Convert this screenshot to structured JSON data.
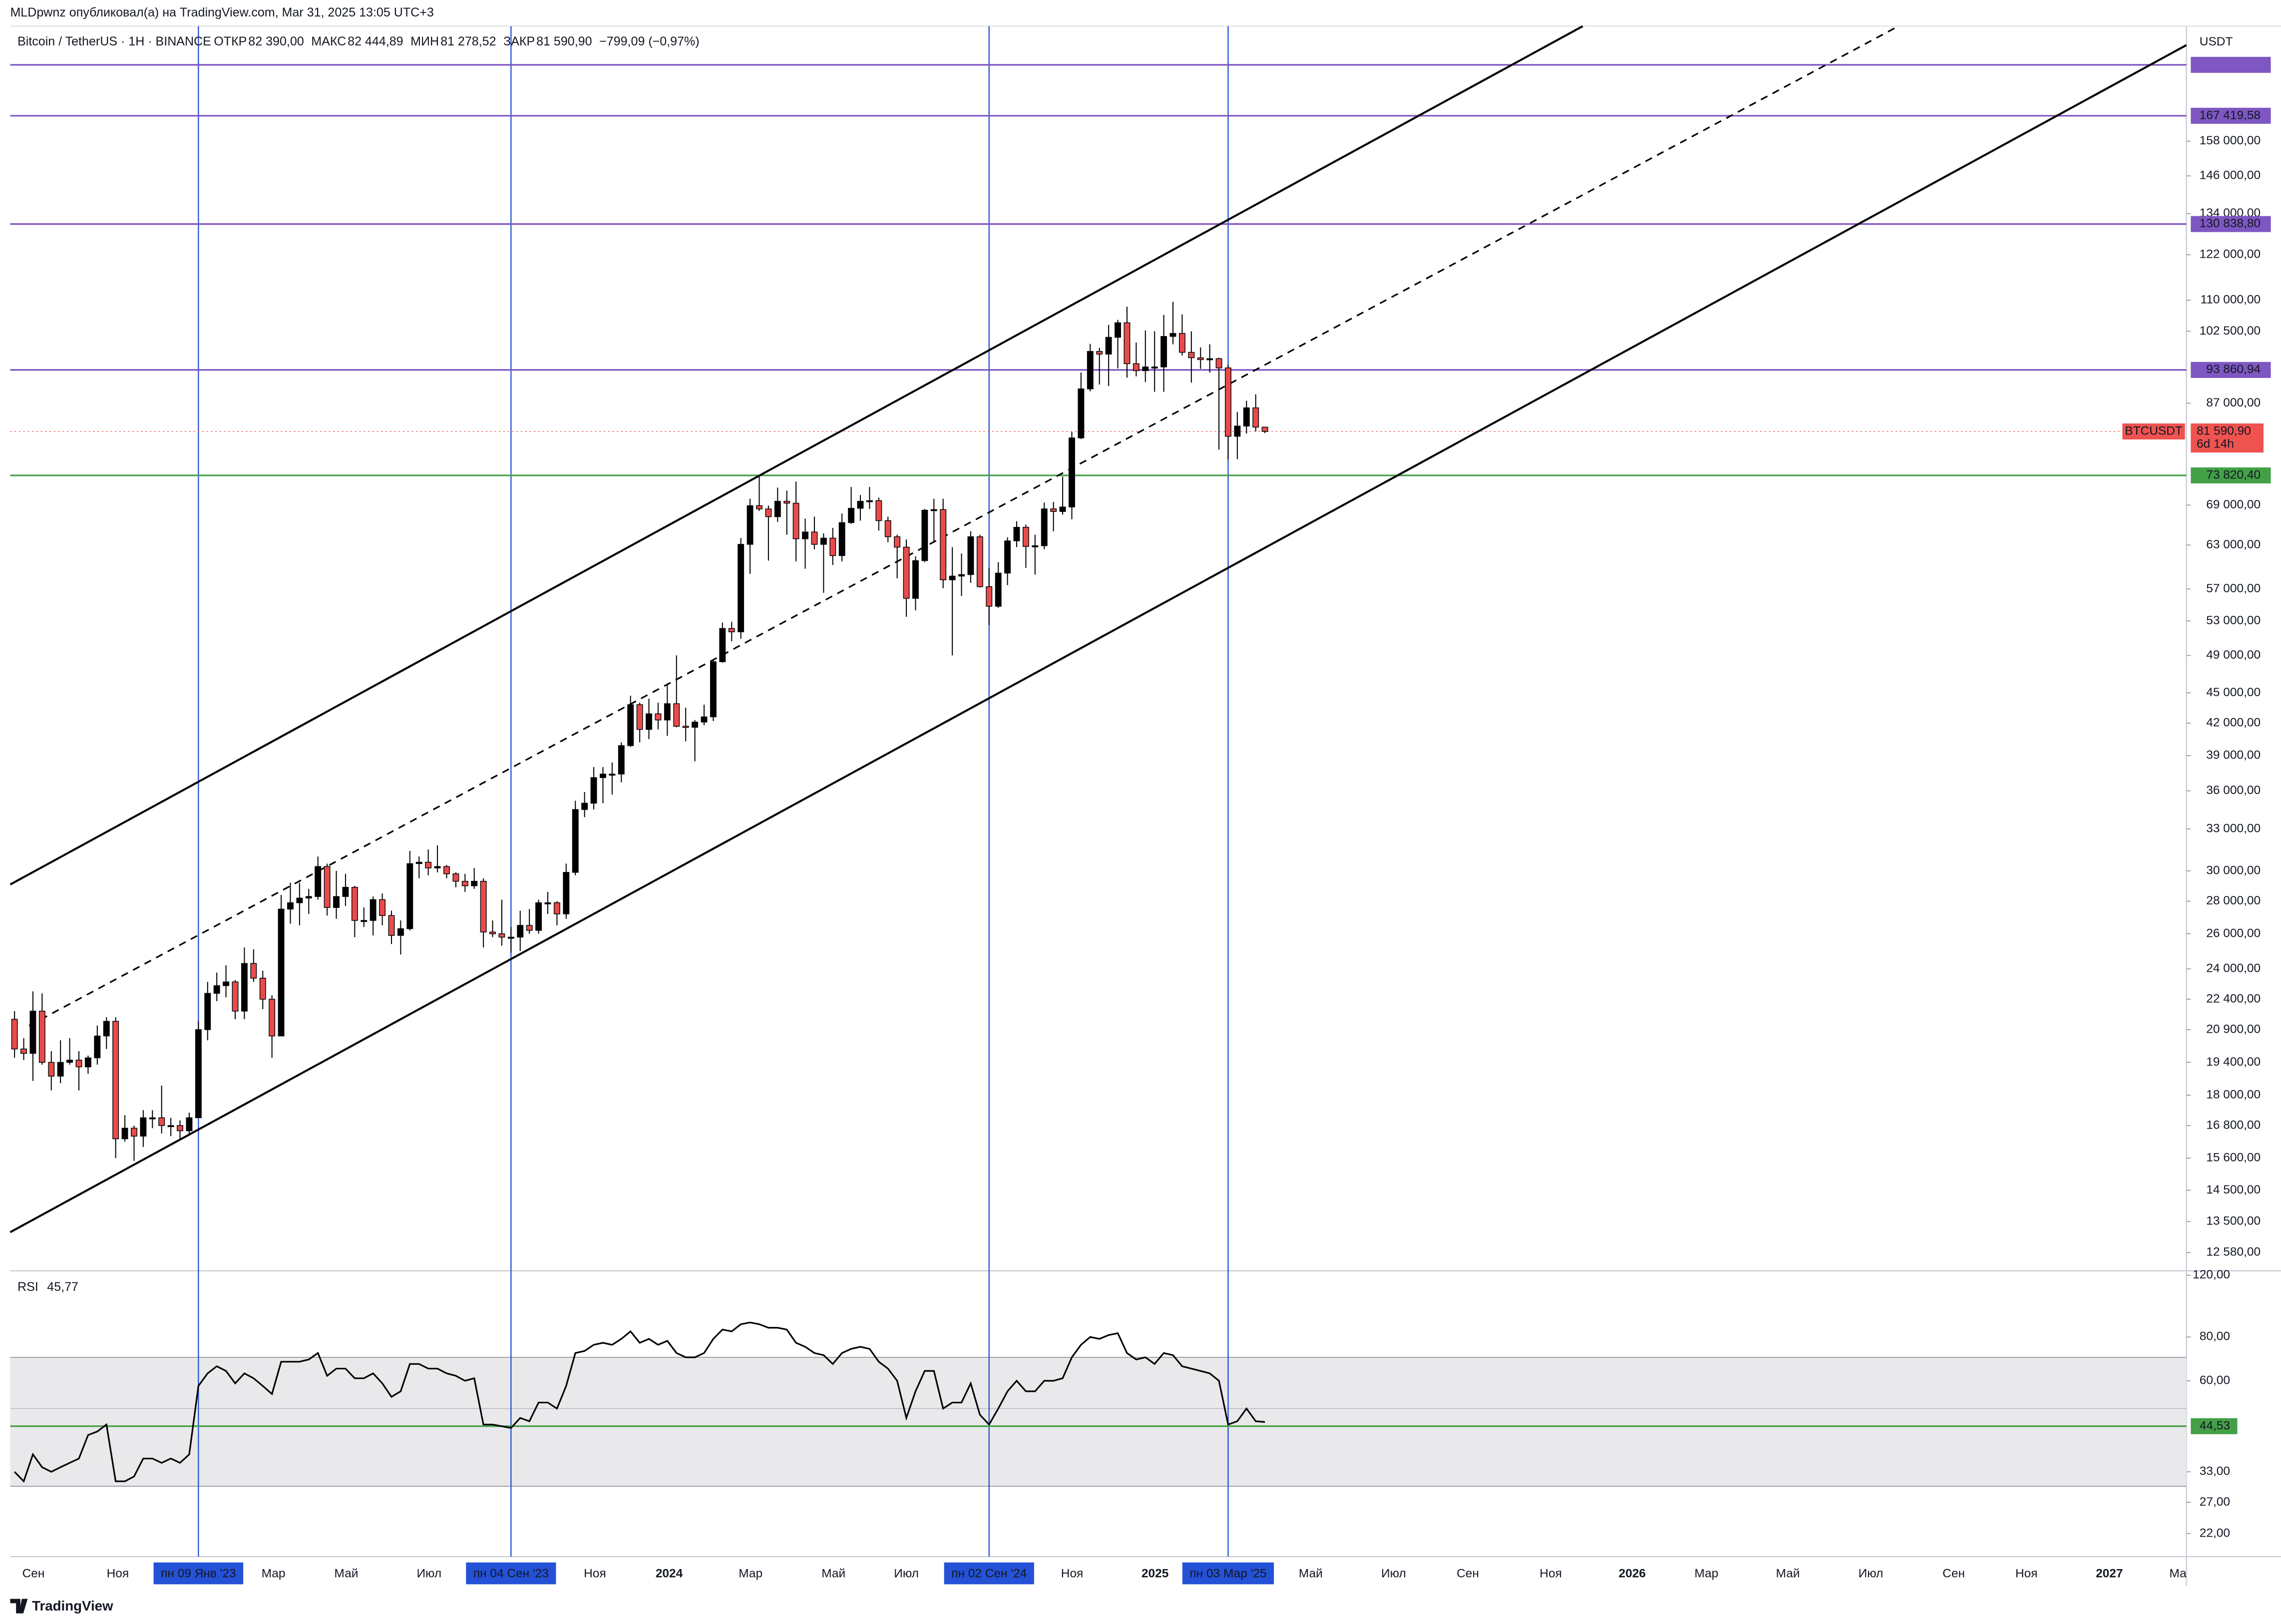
{
  "header": "MLDpwnz опубликовал(а) на TradingView.com, Mar 31, 2025 13:05 UTC+3",
  "currency": "USDT",
  "brand": "TradingView",
  "chart_data": {
    "type": "candlestick",
    "title": "Bitcoin / TetherUS · 1H · BINANCE",
    "ohlc_legend": [
      {
        "label": "ОТКР",
        "value": "82 390,00"
      },
      {
        "label": "МАКС",
        "value": "82 444,89"
      },
      {
        "label": "МИН",
        "value": "81 278,52"
      },
      {
        "label": "ЗАКР",
        "value": "81 590,90"
      }
    ],
    "change": "−799,09 (−0,97%)",
    "log": true,
    "up_color": "#000000",
    "down_color": "#e84b4b",
    "wick_color": "#000000",
    "open": [
      21400,
      20000,
      19800,
      21800,
      19400,
      18800,
      19400,
      19500,
      19200,
      19600,
      20600,
      21300,
      16300,
      16700,
      16400,
      17100,
      17100,
      16800,
      16800,
      16600,
      17100,
      20900,
      22700,
      23100,
      23300,
      21800,
      24300,
      23500,
      22400,
      20600,
      27500,
      27900,
      28200,
      28300,
      30300,
      27600,
      28300,
      28900,
      26800,
      26800,
      28100,
      27100,
      25900,
      26300,
      30500,
      30600,
      30200,
      30300,
      29800,
      29300,
      29000,
      29300,
      26100,
      26000,
      25800,
      25800,
      26500,
      26200,
      27900,
      27900,
      27200,
      29900,
      34500,
      35000,
      37100,
      37400,
      37400,
      39900,
      43800,
      41400,
      42900,
      42300,
      43900,
      41700,
      41600,
      42100,
      42600,
      48300,
      52100,
      51700,
      63100,
      68900,
      68400,
      67200,
      69600,
      69300,
      63900,
      64900,
      63100,
      64000,
      61500,
      66300,
      68500,
      69600,
      69700,
      66600,
      64200,
      62700,
      55800,
      60800,
      68200,
      68300,
      58200,
      58700,
      58900,
      64200,
      57300,
      54800,
      59100,
      63600,
      65600,
      62800,
      62900,
      68400,
      68000,
      68700,
      80400,
      89900,
      97900,
      97300,
      101100,
      104500,
      95200,
      93700,
      94500,
      94500,
      101300,
      102000,
      97700,
      96500,
      96100,
      96300,
      94300,
      80700,
      82600,
      86100,
      82400
    ],
    "high": [
      21800,
      20500,
      22800,
      22700,
      19900,
      20400,
      20500,
      19900,
      19700,
      21100,
      21500,
      21500,
      17200,
      16800,
      17400,
      17400,
      18400,
      17100,
      17000,
      17300,
      21300,
      23300,
      23800,
      24200,
      23400,
      25200,
      25100,
      23900,
      22600,
      28400,
      29200,
      29200,
      28800,
      31000,
      30500,
      30000,
      29800,
      29000,
      27600,
      28300,
      28500,
      27400,
      26800,
      31400,
      31000,
      31500,
      31800,
      30400,
      29900,
      29800,
      30200,
      29500,
      26800,
      28100,
      26400,
      27400,
      27500,
      28100,
      28600,
      28000,
      30500,
      35200,
      35900,
      38000,
      38000,
      38400,
      40200,
      44700,
      44000,
      44400,
      44000,
      45900,
      49000,
      43500,
      42300,
      43800,
      48600,
      52800,
      52900,
      64000,
      70000,
      73800,
      68900,
      71800,
      71300,
      72800,
      66900,
      67200,
      64700,
      65500,
      67700,
      71900,
      70600,
      71900,
      70200,
      67200,
      64500,
      63800,
      61400,
      68400,
      70000,
      70000,
      62700,
      61800,
      65000,
      64500,
      59800,
      60600,
      64100,
      66500,
      66000,
      64500,
      69400,
      69500,
      73600,
      81500,
      93300,
      99600,
      98700,
      104000,
      105200,
      108400,
      99900,
      102700,
      102500,
      106400,
      109600,
      106500,
      102500,
      98800,
      99500,
      96500,
      95000,
      85300,
      87500,
      88800,
      82444.89
    ],
    "low": [
      19600,
      19500,
      18600,
      19300,
      18200,
      18500,
      19300,
      18200,
      18900,
      19300,
      20000,
      15600,
      16200,
      15500,
      16000,
      16700,
      16500,
      16400,
      16300,
      16500,
      17100,
      20400,
      22300,
      22500,
      21400,
      21400,
      23300,
      21900,
      19600,
      20600,
      26600,
      26500,
      27200,
      28100,
      27100,
      26900,
      27700,
      25800,
      26400,
      25900,
      26500,
      25400,
      24800,
      26200,
      29500,
      29700,
      29900,
      29500,
      28900,
      28600,
      28800,
      25200,
      25800,
      25300,
      24900,
      25000,
      26000,
      26000,
      27200,
      26500,
      26900,
      29700,
      33900,
      34500,
      35000,
      35700,
      36700,
      39800,
      40200,
      40500,
      41400,
      40800,
      41600,
      40300,
      38500,
      41800,
      42200,
      48200,
      50600,
      50900,
      59000,
      68100,
      60800,
      66400,
      64500,
      60700,
      59700,
      62400,
      56500,
      60200,
      60700,
      66100,
      66600,
      68400,
      65100,
      63400,
      58400,
      53500,
      54300,
      60600,
      63500,
      57100,
      49000,
      56100,
      57800,
      57200,
      52500,
      54600,
      57500,
      62700,
      59800,
      58900,
      62400,
      65000,
      67500,
      66800,
      80200,
      89400,
      90800,
      90500,
      94200,
      92200,
      92500,
      91300,
      89300,
      89300,
      99500,
      97000,
      91200,
      94100,
      93300,
      78300,
      76600,
      76600,
      81200,
      81600,
      81278.52
    ],
    "close": [
      20000,
      19800,
      21800,
      19400,
      18800,
      19400,
      19500,
      19200,
      19600,
      20600,
      21300,
      16300,
      16700,
      16400,
      17100,
      17100,
      16800,
      16800,
      16600,
      17100,
      20900,
      22700,
      23100,
      23300,
      21800,
      24300,
      23500,
      22400,
      20600,
      27500,
      27900,
      28200,
      28300,
      30300,
      27600,
      28300,
      28900,
      26800,
      26800,
      28100,
      27100,
      25900,
      26300,
      30500,
      30600,
      30200,
      30300,
      29800,
      29300,
      29000,
      29300,
      26100,
      26000,
      25800,
      25800,
      26500,
      26200,
      27900,
      27900,
      27200,
      29900,
      34500,
      35000,
      37100,
      37400,
      37400,
      39900,
      43800,
      41400,
      42900,
      42300,
      43900,
      41700,
      41600,
      42100,
      42600,
      48300,
      52100,
      51700,
      63100,
      68900,
      68400,
      67200,
      69600,
      69300,
      63900,
      64900,
      63100,
      64000,
      61500,
      66300,
      68500,
      69600,
      69700,
      66600,
      64200,
      62700,
      55800,
      60800,
      68200,
      68300,
      58200,
      58700,
      58900,
      64200,
      57300,
      54800,
      59100,
      63600,
      65600,
      62800,
      62900,
      68400,
      68000,
      68700,
      80400,
      89900,
      97900,
      97300,
      101100,
      104500,
      95200,
      93700,
      94500,
      94500,
      101300,
      102000,
      97700,
      96500,
      96100,
      96300,
      94300,
      80700,
      82600,
      86100,
      82400,
      81590.9
    ],
    "ylim": [
      12090,
      205300
    ],
    "yticks": [
      {
        "value": 158000,
        "label": "158 000,00"
      },
      {
        "value": 146000,
        "label": "146 000,00"
      },
      {
        "value": 134000,
        "label": "134 000,00"
      },
      {
        "value": 122000,
        "label": "122 000,00"
      },
      {
        "value": 110000,
        "label": "110 000,00"
      },
      {
        "value": 102500,
        "label": "102 500,00"
      },
      {
        "value": 87000,
        "label": "87 000,00"
      },
      {
        "value": 69000,
        "label": "69 000,00"
      },
      {
        "value": 63000,
        "label": "63 000,00"
      },
      {
        "value": 57000,
        "label": "57 000,00"
      },
      {
        "value": 53000,
        "label": "53 000,00"
      },
      {
        "value": 49000,
        "label": "49 000,00"
      },
      {
        "value": 45000,
        "label": "45 000,00"
      },
      {
        "value": 42000,
        "label": "42 000,00"
      },
      {
        "value": 39000,
        "label": "39 000,00"
      },
      {
        "value": 36000,
        "label": "36 000,00"
      },
      {
        "value": 33000,
        "label": "33 000,00"
      },
      {
        "value": 30000,
        "label": "30 000,00"
      },
      {
        "value": 28000,
        "label": "28 000,00"
      },
      {
        "value": 26000,
        "label": "26 000,00"
      },
      {
        "value": 24000,
        "label": "24 000,00"
      },
      {
        "value": 22400,
        "label": "22 400,00"
      },
      {
        "value": 20900,
        "label": "20 900,00"
      },
      {
        "value": 19400,
        "label": "19 400,00"
      },
      {
        "value": 18000,
        "label": "18 000,00"
      },
      {
        "value": 16800,
        "label": "16 800,00"
      },
      {
        "value": 15600,
        "label": "15 600,00"
      },
      {
        "value": 14500,
        "label": "14 500,00"
      },
      {
        "value": 13500,
        "label": "13 500,00"
      },
      {
        "value": 12580,
        "label": "12 580,00"
      }
    ],
    "levels": [
      {
        "value": 188000,
        "color": "#7e57c2"
      },
      {
        "value": 167419.58,
        "label": "167 419,58",
        "color": "#7e57c2"
      },
      {
        "value": 130838.8,
        "label": "130 838,80",
        "color": "#7e57c2"
      },
      {
        "value": 93860.94,
        "label": "93 860,94",
        "color": "#7e57c2"
      },
      {
        "value": 73820.4,
        "label": "73 820,40",
        "color": "#43a047"
      }
    ],
    "last_price": {
      "value": 81590.9,
      "name": "BTCUSDT",
      "label": "81 590,90",
      "countdown": "6d 14h",
      "color": "#ef5350"
    },
    "xlim": [
      -0.47,
      236.23
    ],
    "xticks": [
      {
        "value": 2.06,
        "label": "Сен"
      },
      {
        "value": 11.23,
        "label": "Ноя"
      },
      {
        "value": 28.16,
        "label": "Мар"
      },
      {
        "value": 36.08,
        "label": "Май"
      },
      {
        "value": 45.09,
        "label": "Июл"
      },
      {
        "value": 63.13,
        "label": "Ноя"
      },
      {
        "value": 71.2,
        "label": "2024"
      },
      {
        "value": 80.06,
        "label": "Мар"
      },
      {
        "value": 89.08,
        "label": "Май"
      },
      {
        "value": 97,
        "label": "Июл"
      },
      {
        "value": 115.03,
        "label": "Ноя"
      },
      {
        "value": 124.05,
        "label": "2025"
      },
      {
        "value": 140.98,
        "label": "Май"
      },
      {
        "value": 150,
        "label": "Июл"
      },
      {
        "value": 158.07,
        "label": "Сен"
      },
      {
        "value": 167.09,
        "label": "Ноя"
      },
      {
        "value": 175.95,
        "label": "2026"
      },
      {
        "value": 184.02,
        "label": "Мар"
      },
      {
        "value": 192.88,
        "label": "Май"
      },
      {
        "value": 201.9,
        "label": "Июл"
      },
      {
        "value": 210.92,
        "label": "Сен"
      },
      {
        "value": 218.83,
        "label": "Ноя"
      },
      {
        "value": 227.85,
        "label": "2027"
      },
      {
        "value": 235.3,
        "label": "Ма"
      }
    ],
    "xmarkers": [
      {
        "value": 20,
        "label": "пн 09 Янв '23"
      },
      {
        "value": 54,
        "label": "пн 04 Сен '23"
      },
      {
        "value": 106,
        "label": "пн 02 Сен '24"
      },
      {
        "value": 132,
        "label": "пн 03 Мар '25"
      }
    ],
    "xmarker_color": "#2451d6",
    "rsi": {
      "name": "RSI",
      "value_label": "45,77",
      "log": true,
      "color": "#000000",
      "values": [
        33,
        31,
        37,
        34,
        33,
        34,
        35,
        36,
        42,
        43,
        45,
        31,
        31,
        32,
        36,
        36,
        35,
        36,
        35,
        37,
        58,
        63,
        66,
        64,
        59,
        63,
        61,
        58,
        55,
        68,
        68,
        68,
        69,
        72,
        62,
        65,
        65,
        61,
        61,
        63,
        59,
        54,
        56,
        67,
        67,
        65,
        65,
        63,
        62,
        60,
        61,
        45,
        45,
        44.5,
        44,
        47,
        46,
        52,
        52,
        50,
        58,
        72,
        73,
        76,
        77,
        76,
        79,
        83,
        77,
        79,
        76,
        78,
        72,
        70,
        70,
        72,
        79,
        84,
        83,
        87,
        88,
        87,
        85,
        85,
        84,
        77,
        75,
        72,
        71,
        67,
        72,
        74,
        75,
        74,
        68,
        65,
        60,
        47,
        56,
        64,
        64,
        50,
        52,
        52,
        59,
        48,
        45,
        50,
        56,
        60,
        56,
        56,
        60,
        60,
        61,
        70,
        76,
        80,
        79,
        81,
        82,
        72,
        69,
        70,
        67,
        72,
        71,
        66,
        65,
        64,
        63,
        60,
        45,
        46,
        50,
        46,
        45.77
      ],
      "ylim": [
        18.9,
        123
      ],
      "yticks": [
        {
          "value": 120,
          "label": "120,00"
        },
        {
          "value": 80,
          "label": "80,00"
        },
        {
          "value": 60,
          "label": "60,00"
        },
        {
          "value": 33,
          "label": "33,00"
        },
        {
          "value": 27,
          "label": "27,00"
        },
        {
          "value": 22,
          "label": "22,00"
        }
      ],
      "band": [
        30,
        70
      ],
      "midline": 50,
      "band_color": "#e9e9eb",
      "level": {
        "value": 44.53,
        "label": "44,53",
        "color": "#43a047"
      }
    }
  }
}
